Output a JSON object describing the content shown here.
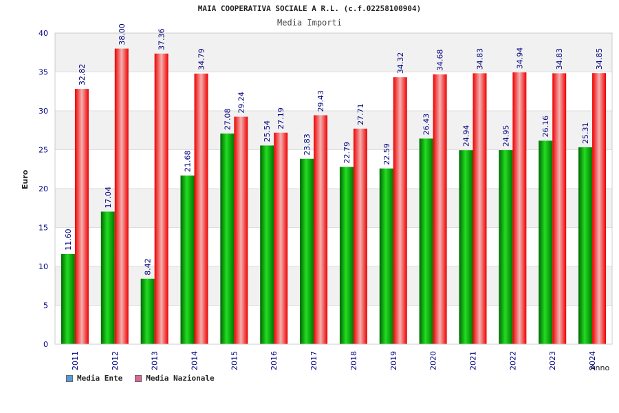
{
  "chart_data": {
    "type": "bar",
    "title": "MAIA COOPERATIVA SOCIALE A R.L. (c.f.02258100904)",
    "subtitle": "Media Importi",
    "xlabel": "Anno",
    "ylabel": "Euro",
    "ylim": [
      0,
      40
    ],
    "yticks": [
      0,
      5,
      10,
      15,
      20,
      25,
      30,
      35,
      40
    ],
    "categories": [
      "2011",
      "2012",
      "2013",
      "2014",
      "2015",
      "2016",
      "2017",
      "2018",
      "2019",
      "2020",
      "2021",
      "2022",
      "2023",
      "2024"
    ],
    "series": [
      {
        "name": "Media Ente",
        "color": "#00aa00",
        "legend_color": "#5b9bd5",
        "values": [
          11.6,
          17.04,
          8.42,
          21.68,
          27.08,
          25.54,
          23.83,
          22.79,
          22.59,
          26.43,
          24.94,
          24.95,
          26.16,
          25.31
        ],
        "labels": [
          "11.60",
          "17.04",
          "8.42",
          "21.68",
          "27.08",
          "25.54",
          "23.83",
          "22.79",
          "22.59",
          "26.43",
          "24.94",
          "24.95",
          "26.16",
          "25.31"
        ]
      },
      {
        "name": "Media Nazionale",
        "color": "#ee1111",
        "legend_color": "#dd6699",
        "values": [
          32.82,
          38.0,
          37.36,
          34.79,
          29.24,
          27.19,
          29.43,
          27.71,
          34.32,
          34.68,
          34.83,
          34.94,
          34.83,
          34.85
        ],
        "labels": [
          "32.82",
          "38.00",
          "37.36",
          "34.79",
          "29.24",
          "27.19",
          "29.43",
          "27.71",
          "34.32",
          "34.68",
          "34.83",
          "34.94",
          "34.83",
          "34.85"
        ]
      }
    ],
    "grid": true,
    "legend_position": "bottom-left"
  }
}
